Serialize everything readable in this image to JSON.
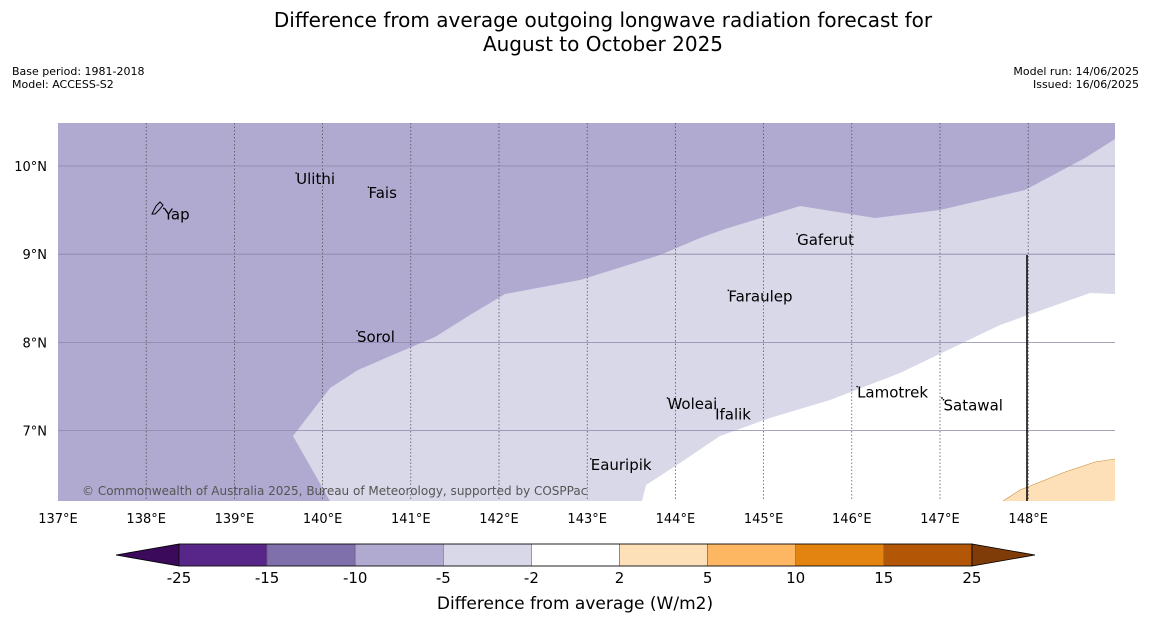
{
  "title": {
    "line1": "Difference from average outgoing longwave radiation forecast for",
    "line2": "August to October 2025"
  },
  "meta_left": {
    "base_period": "Base period: 1981-2018",
    "model": "Model: ACCESS-S2"
  },
  "meta_right": {
    "model_run": "Model run: 14/06/2025",
    "issued": "Issued: 16/06/2025"
  },
  "map": {
    "lon_labels": [
      "137°E",
      "138°E",
      "139°E",
      "140°E",
      "141°E",
      "142°E",
      "143°E",
      "144°E",
      "145°E",
      "146°E",
      "147°E",
      "148°E"
    ],
    "lat_labels": [
      "10°N",
      "9°N",
      "8°N",
      "7°N"
    ],
    "places": [
      {
        "name": "Yap",
        "lon": 138.2,
        "lat": 9.52
      },
      {
        "name": "Ulithi",
        "lon": 139.7,
        "lat": 9.92
      },
      {
        "name": "Fais",
        "lon": 140.52,
        "lat": 9.76
      },
      {
        "name": "Gaferut",
        "lon": 145.38,
        "lat": 9.23
      },
      {
        "name": "Faraulep",
        "lon": 144.6,
        "lat": 8.59
      },
      {
        "name": "Sorol",
        "lon": 140.39,
        "lat": 8.13
      },
      {
        "name": "Lamotrek",
        "lon": 146.06,
        "lat": 7.5
      },
      {
        "name": "Satawal",
        "lon": 147.04,
        "lat": 7.35
      },
      {
        "name": "Woleai",
        "lon": 143.91,
        "lat": 7.37
      },
      {
        "name": "Ifalik",
        "lon": 144.45,
        "lat": 7.25
      },
      {
        "name": "Eauripik",
        "lon": 143.04,
        "lat": 6.68
      }
    ],
    "copyright": "© Commonwealth of Australia 2025, Bureau of Meteorology, supported by COSPPac"
  },
  "colorbar": {
    "title": "Difference from average (W/m2)",
    "ticks": [
      "-25",
      "-15",
      "-10",
      "-5",
      "-2",
      "2",
      "5",
      "10",
      "15",
      "25"
    ],
    "colors": [
      "#3b0a5a",
      "#582588",
      "#7f6faa",
      "#b0aad0",
      "#d8d8e9",
      "#ffffff",
      "#fde0b8",
      "#fdb662",
      "#e2840f",
      "#b35707",
      "#7f3b08"
    ]
  }
}
